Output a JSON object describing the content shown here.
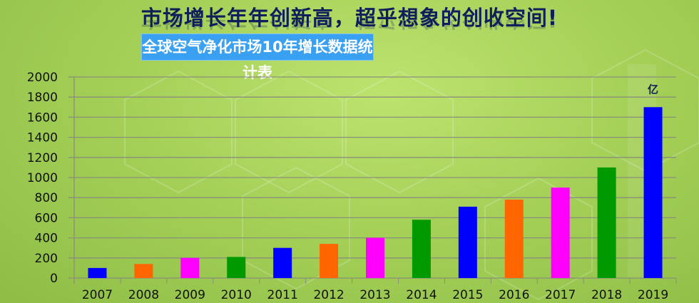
{
  "headline": "市场增长年年创新高，超乎想象的创收空间!",
  "chart_data": {
    "type": "bar",
    "title": "全球空气净化市场10年增长数据统计表",
    "unit_label": "亿",
    "categories": [
      "2007",
      "2008",
      "2009",
      "2010",
      "2011",
      "2012",
      "2013",
      "2014",
      "2015",
      "2016",
      "2017",
      "2018",
      "2019"
    ],
    "values": [
      100,
      140,
      200,
      210,
      300,
      340,
      400,
      580,
      710,
      780,
      900,
      1100,
      1700
    ],
    "bar_colors": [
      "#0000ff",
      "#ff6600",
      "#ff00ff",
      "#009900",
      "#0000ff",
      "#ff6600",
      "#ff00ff",
      "#009900",
      "#0000ff",
      "#ff6600",
      "#ff00ff",
      "#009900",
      "#0000ff"
    ],
    "ylim": [
      0,
      2000
    ],
    "yticks": [
      "0",
      "200",
      "400",
      "600",
      "800",
      "1000",
      "1200",
      "1400",
      "1600",
      "1800",
      "2000"
    ],
    "grid": true,
    "legend": "none"
  }
}
